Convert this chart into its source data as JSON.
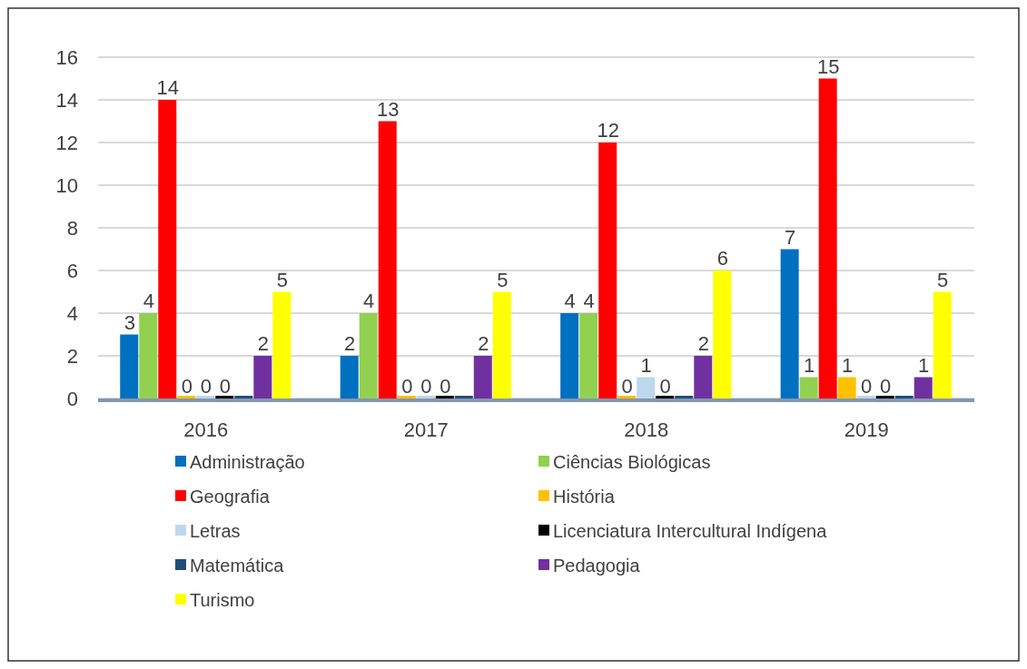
{
  "chart_data": {
    "type": "bar",
    "categories": [
      "2016",
      "2017",
      "2018",
      "2019"
    ],
    "ylim": [
      0,
      16
    ],
    "yticks": [
      0,
      2,
      4,
      6,
      8,
      10,
      12,
      14,
      16
    ],
    "grid": "y",
    "legend": "bottom",
    "series": [
      {
        "name": "Administração",
        "color": "#0070c0",
        "values": [
          3,
          2,
          4,
          7
        ],
        "value_labels": [
          "3",
          "2",
          "4",
          "7"
        ]
      },
      {
        "name": "Ciências Biológicas",
        "color": "#92d050",
        "values": [
          4,
          4,
          4,
          1
        ],
        "value_labels": [
          "4",
          "4",
          "4",
          "1"
        ]
      },
      {
        "name": "Geografia",
        "color": "#ff0000",
        "values": [
          14,
          13,
          12,
          15
        ],
        "value_labels": [
          "14",
          "13",
          "12",
          "15"
        ]
      },
      {
        "name": "História",
        "color": "#ffc000",
        "values": [
          0,
          0,
          0,
          1
        ],
        "value_labels": [
          "0",
          "0",
          "0",
          "1"
        ]
      },
      {
        "name": "Letras",
        "color": "#bdd7ee",
        "values": [
          0,
          0,
          1,
          0
        ],
        "value_labels": [
          "0",
          "0",
          "1",
          "0"
        ]
      },
      {
        "name": "Licenciatura Intercultural Indígena",
        "color": "#000000",
        "values": [
          0,
          0,
          0,
          0
        ],
        "value_labels": [
          "0",
          "0",
          "0",
          "0"
        ]
      },
      {
        "name": "Matemática",
        "color": "#1f4e79",
        "values": [
          0,
          0,
          0,
          0
        ],
        "value_labels": [
          null,
          null,
          null,
          null
        ]
      },
      {
        "name": "Pedagogia",
        "color": "#7030a0",
        "values": [
          2,
          2,
          2,
          1
        ],
        "value_labels": [
          "2",
          "2",
          "2",
          "1"
        ]
      },
      {
        "name": "Turismo",
        "color": "#ffff00",
        "values": [
          5,
          5,
          6,
          5
        ],
        "value_labels": [
          "5",
          "5",
          "6",
          "5"
        ]
      }
    ]
  }
}
